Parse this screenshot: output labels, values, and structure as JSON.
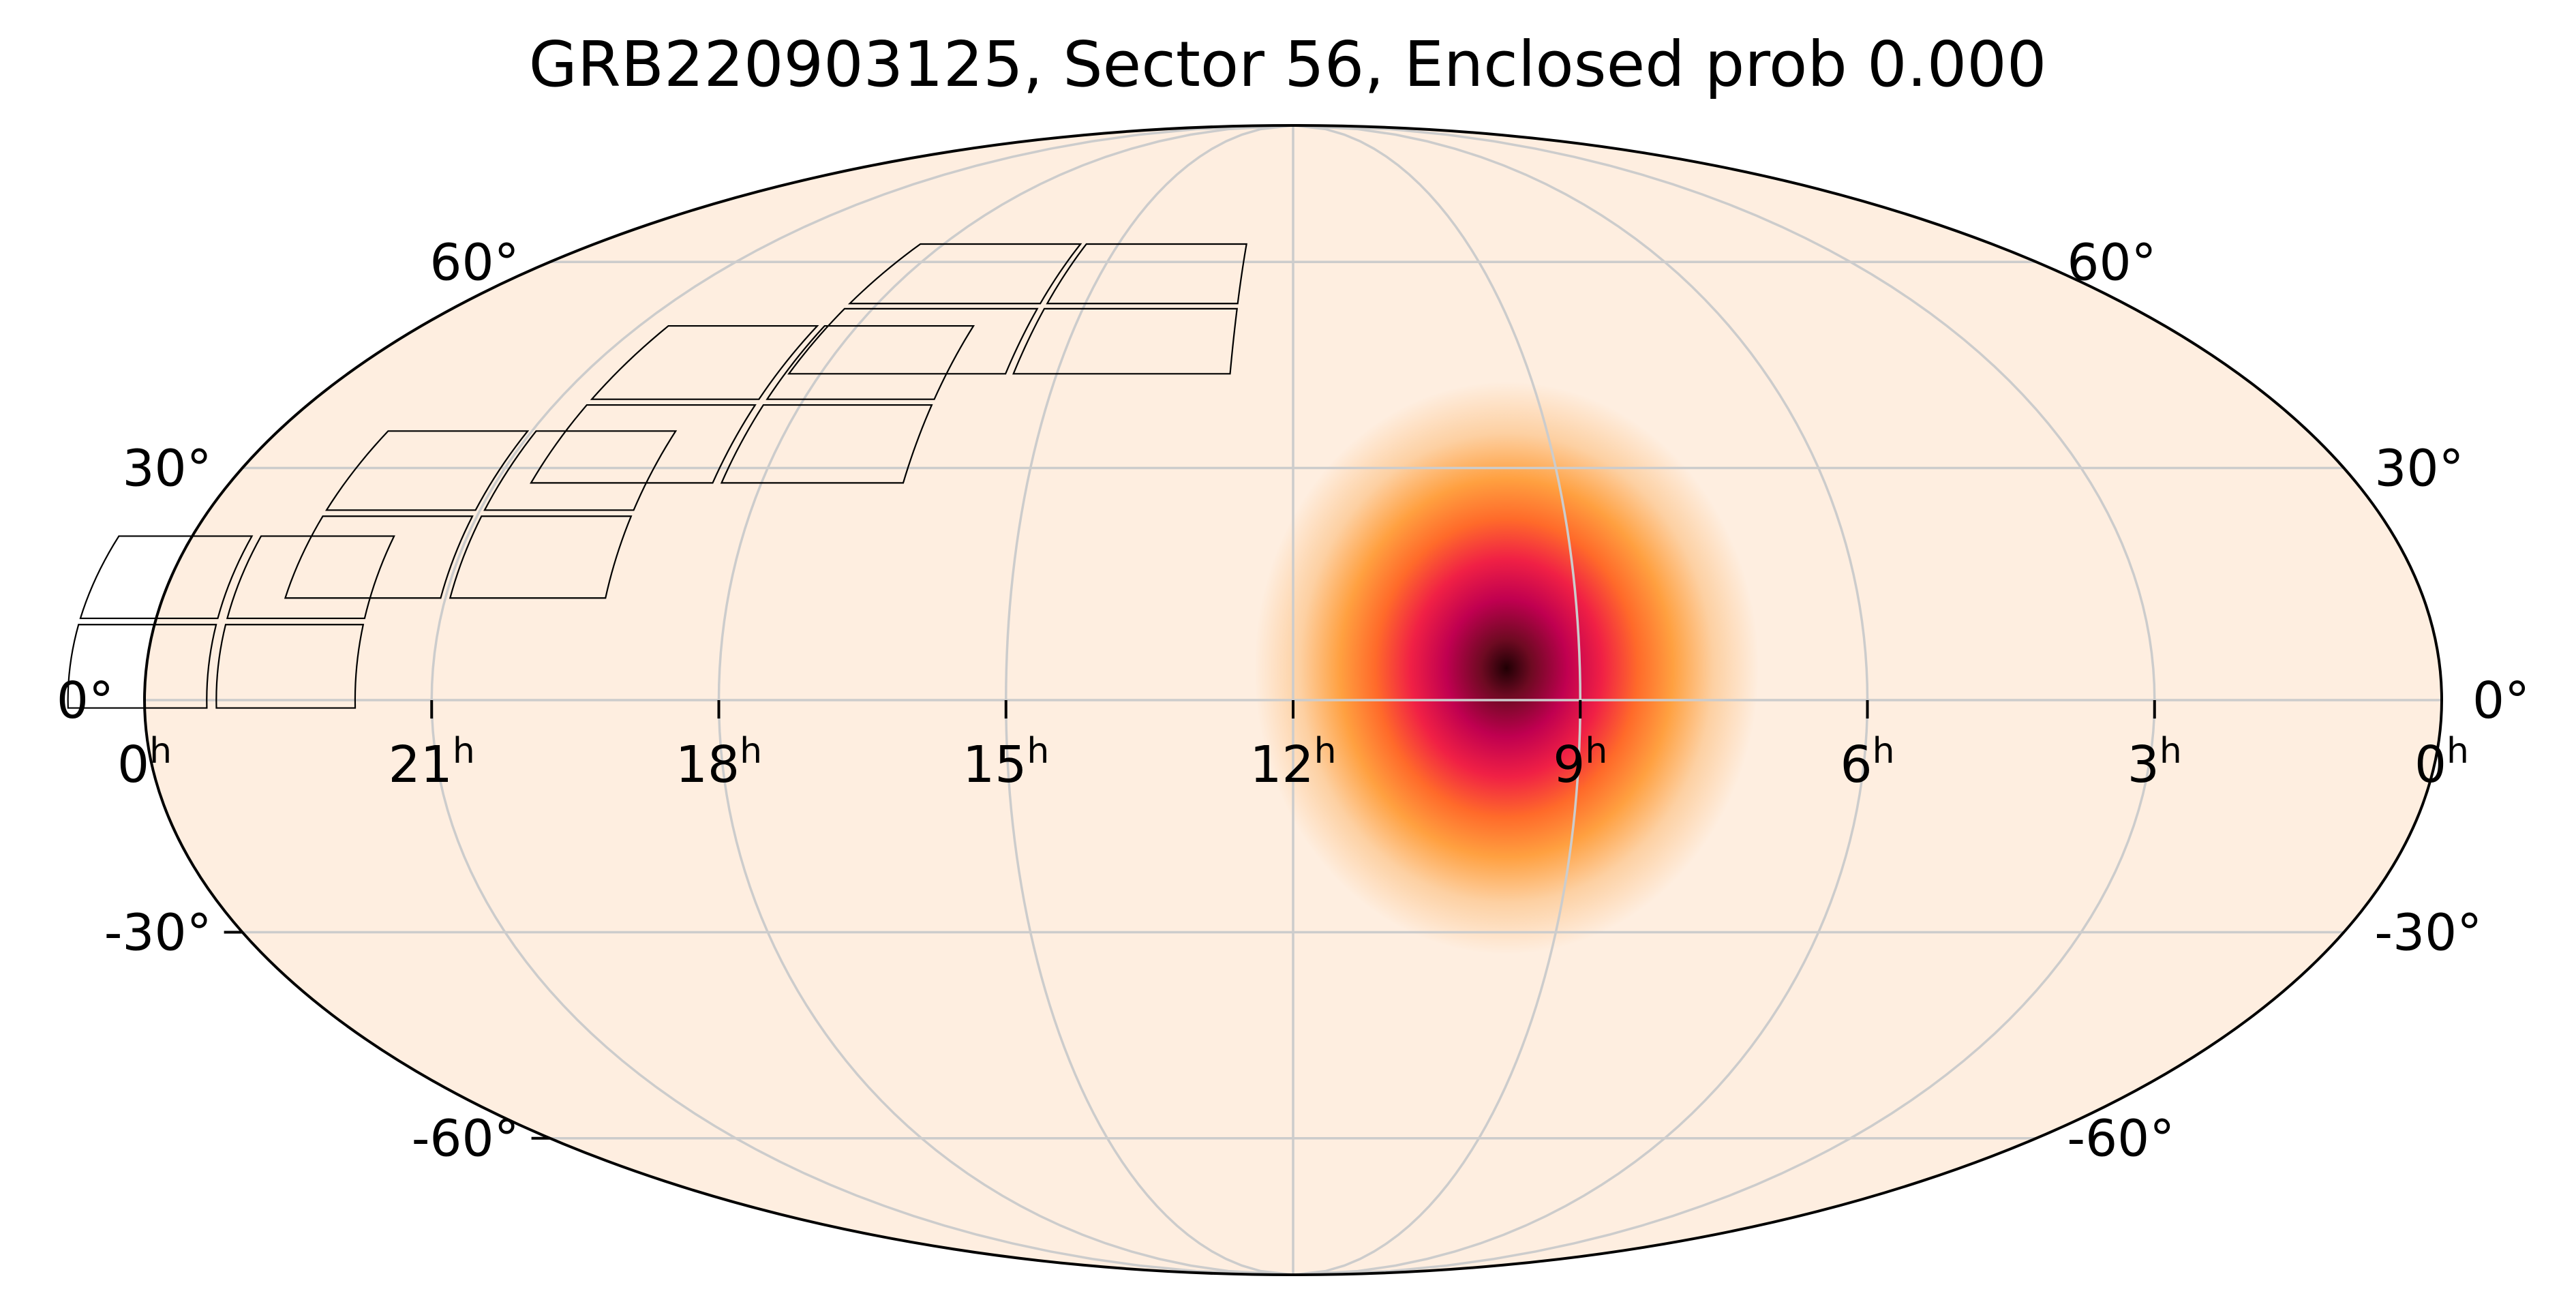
{
  "title": "GRB220903125, Sector 56, Enclosed prob 0.000",
  "projection": "mollweide",
  "grid": true,
  "colors": {
    "background": "#ffffff",
    "sky_fill": "#feeee0",
    "grid": "#cccccc",
    "outline": "#000000",
    "footprint": "#000000",
    "colormap": [
      "#feeee0",
      "#fdd0a2",
      "#ffa040",
      "#ff6a2a",
      "#f02045",
      "#c00050",
      "#6e0a22",
      "#200004"
    ]
  },
  "ra_labels": [
    {
      "hours": 0,
      "side": "left",
      "text": "0",
      "sup": "h"
    },
    {
      "hours": 21,
      "text": "21",
      "sup": "h"
    },
    {
      "hours": 18,
      "text": "18",
      "sup": "h"
    },
    {
      "hours": 15,
      "text": "15",
      "sup": "h"
    },
    {
      "hours": 12,
      "text": "12",
      "sup": "h"
    },
    {
      "hours": 9,
      "text": "9",
      "sup": "h"
    },
    {
      "hours": 6,
      "text": "6",
      "sup": "h"
    },
    {
      "hours": 3,
      "text": "3",
      "sup": "h"
    },
    {
      "hours": 0,
      "side": "right",
      "text": "0",
      "sup": "h"
    }
  ],
  "dec_labels_left": [
    {
      "dec": 60,
      "text": "60°"
    },
    {
      "dec": 30,
      "text": "30°"
    },
    {
      "dec": 0,
      "text": "0°"
    },
    {
      "dec": -30,
      "text": "-30°"
    },
    {
      "dec": -60,
      "text": "-60°"
    }
  ],
  "dec_labels_right": [
    {
      "dec": 60,
      "text": "60°"
    },
    {
      "dec": 30,
      "text": "30°"
    },
    {
      "dec": 0,
      "text": "0°"
    },
    {
      "dec": -30,
      "text": "-30°"
    },
    {
      "dec": -60,
      "text": "-60°"
    }
  ],
  "probability_map": {
    "peak_ra_hours": 9.6,
    "peak_dec_deg": 2,
    "peak_value": 1.0
  },
  "footprint": {
    "sector": 56,
    "camera_count": 4,
    "ccds_per_camera": 4
  }
}
